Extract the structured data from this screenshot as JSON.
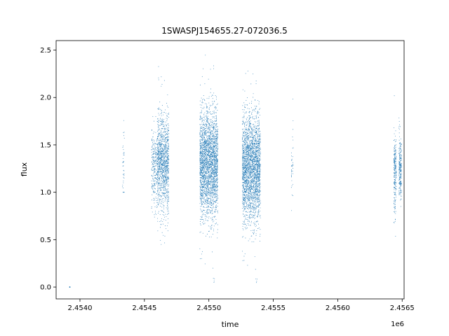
{
  "chart_data": {
    "type": "scatter",
    "title": "1SWASPJ154655.27-072036.5",
    "xlabel": "time",
    "ylabel": "flux",
    "x_offset_label": "1e6",
    "xlim": [
      2453815,
      2456515
    ],
    "ylim": [
      -0.125,
      2.6
    ],
    "x_ticks": [
      2.454,
      2.4545,
      2.455,
      2.4555,
      2.456,
      2.4565
    ],
    "x_tick_labels": [
      "2.4540",
      "2.4545",
      "2.4550",
      "2.4555",
      "2.4560",
      "2.4565"
    ],
    "y_ticks": [
      0.0,
      0.5,
      1.0,
      1.5,
      2.0,
      2.5
    ],
    "y_tick_labels": [
      "0.0",
      "0.5",
      "1.0",
      "1.5",
      "2.0",
      "2.5"
    ],
    "grid": false,
    "point_color": "#1f77b4",
    "groups": [
      {
        "x_range": [
          2453920,
          2453922
        ],
        "flux_center": 0.0,
        "flux_spread": 0.0,
        "flux_range": [
          0.0,
          0.0
        ],
        "density": "single"
      },
      {
        "x_range": [
          2454330,
          2454345
        ],
        "flux_center": 1.25,
        "flux_spread": 0.25,
        "flux_range": [
          1.0,
          2.0
        ],
        "density": "sparse"
      },
      {
        "x_range": [
          2454555,
          2454600
        ],
        "flux_center": 1.25,
        "flux_spread": 0.2,
        "flux_range": [
          0.55,
          1.8
        ],
        "density": "medium"
      },
      {
        "x_range": [
          2454600,
          2454690
        ],
        "flux_center": 1.3,
        "flux_spread": 0.25,
        "flux_range": [
          0.45,
          2.47
        ],
        "density": "dense"
      },
      {
        "x_range": [
          2454930,
          2455070
        ],
        "flux_center": 1.3,
        "flux_spread": 0.28,
        "flux_range": [
          0.02,
          2.47
        ],
        "density": "very-dense"
      },
      {
        "x_range": [
          2455260,
          2455400
        ],
        "flux_center": 1.25,
        "flux_spread": 0.28,
        "flux_range": [
          0.02,
          2.3
        ],
        "density": "very-dense"
      },
      {
        "x_range": [
          2455640,
          2455655
        ],
        "flux_center": 1.25,
        "flux_spread": 0.2,
        "flux_range": [
          0.38,
          2.1
        ],
        "density": "sparse"
      },
      {
        "x_range": [
          2456435,
          2456455
        ],
        "flux_center": 1.2,
        "flux_spread": 0.2,
        "flux_range": [
          0.28,
          2.45
        ],
        "density": "medium"
      },
      {
        "x_range": [
          2456475,
          2456495
        ],
        "flux_center": 1.25,
        "flux_spread": 0.18,
        "flux_range": [
          0.85,
          1.85
        ],
        "density": "medium"
      }
    ]
  }
}
